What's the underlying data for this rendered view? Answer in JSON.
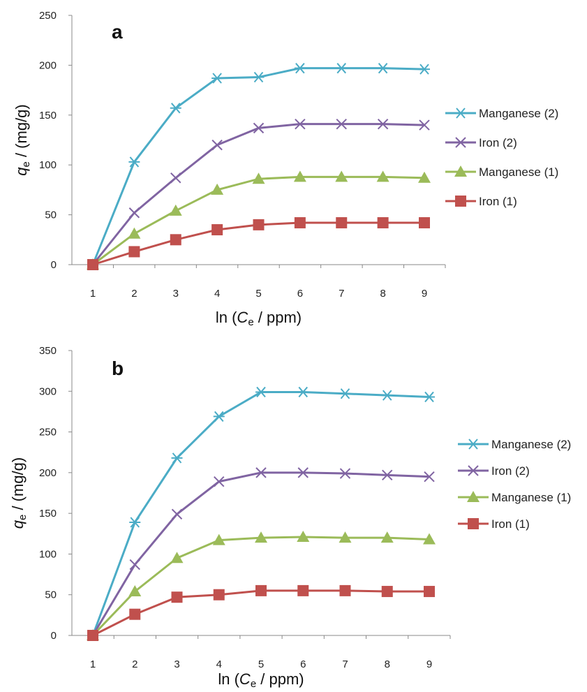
{
  "chart_data": [
    {
      "type": "line",
      "panel_label": "a",
      "xlabel": {
        "prefix": "ln (",
        "var": "C",
        "sub": "e",
        "suffix": " / ppm)"
      },
      "ylabel": {
        "var": "q",
        "sub": "e",
        "suffix": " / (mg/g)"
      },
      "x": [
        1,
        2,
        3,
        4,
        5,
        6,
        7,
        8,
        9
      ],
      "ylim": [
        0,
        250
      ],
      "yticks": [
        0,
        50,
        100,
        150,
        200,
        250
      ],
      "legend_position": "right",
      "series": [
        {
          "name": "Manganese (2)",
          "color": "#4bacc6",
          "marker": "asterisk",
          "values": [
            0,
            103,
            157,
            187,
            188,
            197,
            197,
            197,
            196
          ]
        },
        {
          "name": "Iron (2)",
          "color": "#8064a2",
          "marker": "x",
          "values": [
            0,
            52,
            87,
            120,
            137,
            141,
            141,
            141,
            140
          ]
        },
        {
          "name": "Manganese (1)",
          "color": "#9bbb59",
          "marker": "triangle",
          "values": [
            0,
            31,
            54,
            75,
            86,
            88,
            88,
            88,
            87
          ]
        },
        {
          "name": "Iron (1)",
          "color": "#c0504d",
          "marker": "square",
          "values": [
            0,
            13,
            25,
            35,
            40,
            42,
            42,
            42,
            42
          ]
        }
      ]
    },
    {
      "type": "line",
      "panel_label": "b",
      "xlabel": {
        "prefix": "ln (",
        "var": "C",
        "sub": "e",
        "suffix": " / ppm)"
      },
      "ylabel": {
        "var": "q",
        "sub": "e",
        "suffix": " / (mg/g)"
      },
      "x": [
        1,
        2,
        3,
        4,
        5,
        6,
        7,
        8,
        9
      ],
      "ylim": [
        0,
        350
      ],
      "yticks": [
        0,
        50,
        100,
        150,
        200,
        250,
        300,
        350
      ],
      "legend_position": "right",
      "series": [
        {
          "name": "Manganese (2)",
          "color": "#4bacc6",
          "marker": "asterisk",
          "values": [
            0,
            139,
            218,
            269,
            299,
            299,
            297,
            295,
            293
          ]
        },
        {
          "name": "Iron (2)",
          "color": "#8064a2",
          "marker": "x",
          "values": [
            0,
            87,
            149,
            189,
            200,
            200,
            199,
            197,
            195
          ]
        },
        {
          "name": "Manganese (1)",
          "color": "#9bbb59",
          "marker": "triangle",
          "values": [
            0,
            54,
            95,
            117,
            120,
            121,
            120,
            120,
            118
          ]
        },
        {
          "name": "Iron (1)",
          "color": "#c0504d",
          "marker": "square",
          "values": [
            0,
            26,
            47,
            50,
            55,
            55,
            55,
            54,
            54
          ]
        }
      ]
    }
  ]
}
